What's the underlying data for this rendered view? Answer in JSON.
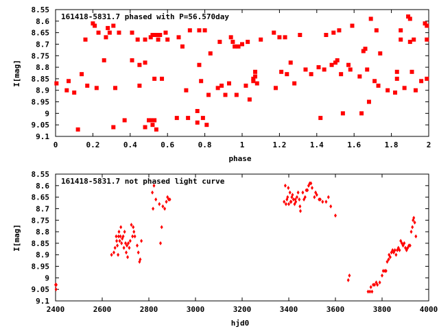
{
  "chart_data": [
    {
      "type": "scatter",
      "title": "161418-5831.7 phased with P=56.570day",
      "xlabel": "phase",
      "ylabel": "I[mag]",
      "xlim": [
        0,
        2
      ],
      "ylim": [
        9.1,
        8.55
      ],
      "y_inverted": true,
      "x_ticks": [
        "0",
        "0.2",
        "0.4",
        "0.6",
        "0.8",
        "1",
        "1.2",
        "1.4",
        "1.6",
        "1.8",
        "2"
      ],
      "y_ticks": [
        "8.55",
        "8.6",
        "8.65",
        "8.7",
        "8.75",
        "8.8",
        "8.85",
        "8.9",
        "8.95",
        "9",
        "9.05",
        "9.1"
      ],
      "color": "#ff0000",
      "points": [
        [
          0.005,
          8.87
        ],
        [
          0.06,
          8.9
        ],
        [
          0.07,
          8.86
        ],
        [
          0.1,
          8.91
        ],
        [
          0.12,
          9.07
        ],
        [
          0.14,
          8.83
        ],
        [
          0.16,
          8.68
        ],
        [
          0.17,
          8.88
        ],
        [
          0.2,
          8.61
        ],
        [
          0.21,
          8.62
        ],
        [
          0.22,
          8.89
        ],
        [
          0.23,
          8.65
        ],
        [
          0.26,
          8.77
        ],
        [
          0.27,
          8.67
        ],
        [
          0.28,
          8.63
        ],
        [
          0.29,
          8.65
        ],
        [
          0.31,
          9.06
        ],
        [
          0.31,
          8.62
        ],
        [
          0.32,
          8.89
        ],
        [
          0.34,
          8.65
        ],
        [
          0.37,
          9.03
        ],
        [
          0.41,
          8.65
        ],
        [
          0.41,
          8.77
        ],
        [
          0.44,
          8.68
        ],
        [
          0.45,
          8.88
        ],
        [
          0.45,
          8.79
        ],
        [
          0.48,
          9.06
        ],
        [
          0.48,
          8.78
        ],
        [
          0.48,
          8.68
        ],
        [
          0.5,
          9.03
        ],
        [
          0.51,
          9.03
        ],
        [
          0.51,
          8.67
        ],
        [
          0.52,
          9.05
        ],
        [
          0.52,
          8.66
        ],
        [
          0.53,
          9.03
        ],
        [
          0.53,
          8.85
        ],
        [
          0.54,
          9.07
        ],
        [
          0.54,
          8.66
        ],
        [
          0.55,
          8.68
        ],
        [
          0.56,
          8.66
        ],
        [
          0.57,
          8.85
        ],
        [
          0.59,
          8.65
        ],
        [
          0.6,
          8.68
        ],
        [
          0.65,
          9.02
        ],
        [
          0.66,
          8.67
        ],
        [
          0.68,
          8.71
        ],
        [
          0.7,
          8.9
        ],
        [
          0.71,
          9.02
        ],
        [
          0.72,
          8.64
        ],
        [
          0.76,
          8.99
        ],
        [
          0.76,
          9.04
        ],
        [
          0.77,
          8.64
        ],
        [
          0.77,
          8.79
        ],
        [
          0.78,
          8.86
        ],
        [
          0.79,
          9.02
        ],
        [
          0.8,
          8.64
        ],
        [
          0.81,
          9.05
        ],
        [
          0.82,
          8.92
        ],
        [
          0.83,
          8.74
        ],
        [
          0.87,
          8.89
        ],
        [
          0.88,
          8.69
        ],
        [
          0.89,
          8.88
        ],
        [
          0.91,
          8.92
        ],
        [
          0.93,
          8.87
        ],
        [
          0.94,
          8.67
        ],
        [
          0.95,
          8.69
        ],
        [
          0.96,
          8.71
        ],
        [
          0.97,
          8.92
        ],
        [
          0.98,
          8.71
        ],
        [
          1.0,
          8.7
        ],
        [
          1.02,
          8.88
        ],
        [
          1.03,
          8.69
        ],
        [
          1.04,
          8.94
        ],
        [
          1.06,
          8.85
        ],
        [
          1.06,
          8.86
        ],
        [
          1.07,
          8.82
        ],
        [
          1.07,
          8.84
        ],
        [
          1.08,
          8.87
        ],
        [
          1.1,
          8.68
        ],
        [
          1.17,
          8.65
        ],
        [
          1.18,
          8.89
        ],
        [
          1.2,
          8.67
        ],
        [
          1.21,
          8.82
        ],
        [
          1.23,
          8.67
        ],
        [
          1.24,
          8.83
        ],
        [
          1.26,
          8.78
        ],
        [
          1.28,
          8.87
        ],
        [
          1.31,
          8.66
        ],
        [
          1.34,
          8.81
        ],
        [
          1.37,
          8.83
        ],
        [
          1.41,
          8.8
        ],
        [
          1.42,
          9.02
        ],
        [
          1.44,
          8.81
        ],
        [
          1.45,
          8.66
        ],
        [
          1.48,
          8.79
        ],
        [
          1.49,
          8.65
        ],
        [
          1.5,
          8.78
        ],
        [
          1.51,
          8.77
        ],
        [
          1.52,
          8.64
        ],
        [
          1.53,
          8.83
        ],
        [
          1.54,
          9.0
        ],
        [
          1.57,
          8.79
        ],
        [
          1.58,
          8.81
        ],
        [
          1.59,
          8.62
        ],
        [
          1.63,
          8.84
        ],
        [
          1.64,
          9.0
        ],
        [
          1.65,
          8.73
        ],
        [
          1.66,
          8.72
        ],
        [
          1.67,
          8.81
        ],
        [
          1.68,
          8.95
        ],
        [
          1.69,
          8.59
        ],
        [
          1.71,
          8.86
        ],
        [
          1.72,
          8.64
        ],
        [
          1.73,
          8.88
        ],
        [
          1.74,
          8.74
        ],
        [
          1.78,
          8.9
        ],
        [
          1.82,
          8.91
        ],
        [
          1.83,
          8.82
        ],
        [
          1.83,
          8.85
        ],
        [
          1.85,
          8.68
        ],
        [
          1.85,
          8.64
        ],
        [
          1.87,
          8.89
        ],
        [
          1.89,
          8.58
        ],
        [
          1.9,
          8.59
        ],
        [
          1.9,
          8.69
        ],
        [
          1.91,
          8.82
        ],
        [
          1.92,
          8.68
        ],
        [
          1.93,
          8.9
        ],
        [
          1.96,
          8.86
        ],
        [
          1.98,
          8.61
        ],
        [
          1.99,
          8.62
        ],
        [
          1.99,
          8.68
        ],
        [
          1.99,
          8.85
        ]
      ]
    },
    {
      "type": "scatter",
      "title": "161418-5831.7 not phased light curve",
      "xlabel": "hjd0",
      "ylabel": "I[mag]",
      "xlim": [
        2400,
        4000
      ],
      "ylim": [
        9.1,
        8.55
      ],
      "y_inverted": true,
      "x_ticks": [
        "2400",
        "2600",
        "2800",
        "3000",
        "3200",
        "3400",
        "3600",
        "3800",
        "4000"
      ],
      "y_ticks": [
        "8.55",
        "8.6",
        "8.65",
        "8.7",
        "8.75",
        "8.8",
        "8.85",
        "8.9",
        "8.95",
        "9",
        "9.05",
        "9.1"
      ],
      "color": "#ff0000",
      "points": [
        [
          2400,
          9.03
        ],
        [
          2402,
          9.05
        ],
        [
          2403,
          9.03
        ],
        [
          2640,
          8.9
        ],
        [
          2650,
          8.89
        ],
        [
          2655,
          8.87
        ],
        [
          2660,
          8.82
        ],
        [
          2662,
          8.84
        ],
        [
          2665,
          8.86
        ],
        [
          2668,
          8.9
        ],
        [
          2670,
          8.82
        ],
        [
          2672,
          8.8
        ],
        [
          2675,
          8.84
        ],
        [
          2678,
          8.82
        ],
        [
          2680,
          8.78
        ],
        [
          2683,
          8.85
        ],
        [
          2686,
          8.83
        ],
        [
          2690,
          8.82
        ],
        [
          2693,
          8.87
        ],
        [
          2696,
          8.8
        ],
        [
          2700,
          8.85
        ],
        [
          2703,
          8.89
        ],
        [
          2706,
          8.86
        ],
        [
          2709,
          8.91
        ],
        [
          2712,
          8.85
        ],
        [
          2716,
          8.87
        ],
        [
          2720,
          8.84
        ],
        [
          2725,
          8.77
        ],
        [
          2730,
          8.82
        ],
        [
          2733,
          8.78
        ],
        [
          2736,
          8.8
        ],
        [
          2740,
          8.82
        ],
        [
          2750,
          8.86
        ],
        [
          2755,
          8.89
        ],
        [
          2760,
          8.93
        ],
        [
          2763,
          8.92
        ],
        [
          2768,
          8.84
        ],
        [
          2815,
          8.63
        ],
        [
          2818,
          8.7
        ],
        [
          2822,
          8.6
        ],
        [
          2830,
          8.66
        ],
        [
          2845,
          8.68
        ],
        [
          2850,
          8.85
        ],
        [
          2855,
          8.78
        ],
        [
          2860,
          8.69
        ],
        [
          2868,
          8.7
        ],
        [
          2875,
          8.67
        ],
        [
          2880,
          8.65
        ],
        [
          2885,
          8.66
        ],
        [
          2890,
          8.66
        ],
        [
          3380,
          8.67
        ],
        [
          3385,
          8.6
        ],
        [
          3388,
          8.68
        ],
        [
          3392,
          8.66
        ],
        [
          3395,
          8.65
        ],
        [
          3398,
          8.61
        ],
        [
          3400,
          8.68
        ],
        [
          3405,
          8.63
        ],
        [
          3408,
          8.67
        ],
        [
          3410,
          8.67
        ],
        [
          3413,
          8.65
        ],
        [
          3416,
          8.64
        ],
        [
          3420,
          8.66
        ],
        [
          3425,
          8.68
        ],
        [
          3428,
          8.66
        ],
        [
          3430,
          8.67
        ],
        [
          3435,
          8.65
        ],
        [
          3440,
          8.63
        ],
        [
          3445,
          8.66
        ],
        [
          3448,
          8.69
        ],
        [
          3450,
          8.71
        ],
        [
          3460,
          8.63
        ],
        [
          3465,
          8.66
        ],
        [
          3470,
          8.65
        ],
        [
          3475,
          8.62
        ],
        [
          3480,
          8.62
        ],
        [
          3485,
          8.6
        ],
        [
          3490,
          8.59
        ],
        [
          3495,
          8.59
        ],
        [
          3500,
          8.61
        ],
        [
          3510,
          8.65
        ],
        [
          3515,
          8.63
        ],
        [
          3520,
          8.64
        ],
        [
          3530,
          8.66
        ],
        [
          3535,
          8.66
        ],
        [
          3545,
          8.67
        ],
        [
          3560,
          8.67
        ],
        [
          3570,
          8.65
        ],
        [
          3580,
          8.69
        ],
        [
          3600,
          8.73
        ],
        [
          3655,
          9.01
        ],
        [
          3660,
          8.99
        ],
        [
          3740,
          9.06
        ],
        [
          3748,
          9.06
        ],
        [
          3752,
          9.04
        ],
        [
          3757,
          9.06
        ],
        [
          3762,
          9.03
        ],
        [
          3768,
          9.03
        ],
        [
          3775,
          9.02
        ],
        [
          3780,
          9.03
        ],
        [
          3790,
          9.02
        ],
        [
          3800,
          8.99
        ],
        [
          3805,
          8.97
        ],
        [
          3812,
          8.97
        ],
        [
          3817,
          8.97
        ],
        [
          3822,
          8.93
        ],
        [
          3828,
          8.92
        ],
        [
          3830,
          8.9
        ],
        [
          3835,
          8.91
        ],
        [
          3840,
          8.89
        ],
        [
          3845,
          8.88
        ],
        [
          3850,
          8.89
        ],
        [
          3855,
          8.88
        ],
        [
          3860,
          8.9
        ],
        [
          3865,
          8.88
        ],
        [
          3870,
          8.87
        ],
        [
          3875,
          8.88
        ],
        [
          3880,
          8.84
        ],
        [
          3885,
          8.85
        ],
        [
          3890,
          8.86
        ],
        [
          3895,
          8.85
        ],
        [
          3900,
          8.87
        ],
        [
          3905,
          8.88
        ],
        [
          3910,
          8.87
        ],
        [
          3915,
          8.86
        ],
        [
          3920,
          8.86
        ],
        [
          3925,
          8.8
        ],
        [
          3930,
          8.78
        ],
        [
          3933,
          8.75
        ],
        [
          3936,
          8.74
        ],
        [
          3940,
          8.76
        ],
        [
          3945,
          8.82
        ]
      ]
    }
  ]
}
